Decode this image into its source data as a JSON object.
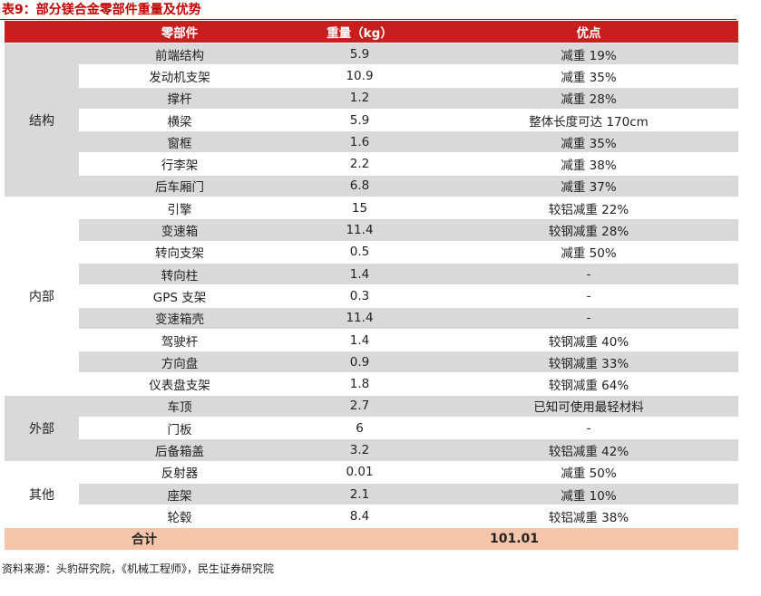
{
  "title": "表9：部分镁合金零部件重量及优势",
  "headers": {
    "group": "",
    "part": "零部件",
    "weight": "重量（kg）",
    "advantage": "优点"
  },
  "groups": [
    {
      "name": "结构",
      "rows": [
        {
          "part": "前端结构",
          "weight": "5.9",
          "advantage": "减重 19%"
        },
        {
          "part": "发动机支架",
          "weight": "10.9",
          "advantage": "减重 35%"
        },
        {
          "part": "撑杆",
          "weight": "1.2",
          "advantage": "减重 28%"
        },
        {
          "part": "横梁",
          "weight": "5.9",
          "advantage": "整体长度可达 170cm"
        },
        {
          "part": "窗框",
          "weight": "1.6",
          "advantage": "减重 35%"
        },
        {
          "part": "行李架",
          "weight": "2.2",
          "advantage": "减重 38%"
        },
        {
          "part": "后车厢门",
          "weight": "6.8",
          "advantage": "减重 37%"
        }
      ]
    },
    {
      "name": "内部",
      "rows": [
        {
          "part": "引擎",
          "weight": "15",
          "advantage": "较铝减重 22%"
        },
        {
          "part": "变速箱",
          "weight": "11.4",
          "advantage": "较钢减重 28%"
        },
        {
          "part": "转向支架",
          "weight": "0.5",
          "advantage": "减重 50%"
        },
        {
          "part": "转向柱",
          "weight": "1.4",
          "advantage": "-"
        },
        {
          "part": "GPS 支架",
          "weight": "0.3",
          "advantage": "-"
        },
        {
          "part": "变速箱壳",
          "weight": "11.4",
          "advantage": "-"
        },
        {
          "part": "驾驶杆",
          "weight": "1.4",
          "advantage": "较钢减重 40%"
        },
        {
          "part": "方向盘",
          "weight": "0.9",
          "advantage": "较钢减重 33%"
        },
        {
          "part": "仪表盘支架",
          "weight": "1.8",
          "advantage": "较钢减重 64%"
        }
      ]
    },
    {
      "name": "外部",
      "rows": [
        {
          "part": "车顶",
          "weight": "2.7",
          "advantage": "已知可使用最轻材料"
        },
        {
          "part": "门板",
          "weight": "6",
          "advantage": "-"
        },
        {
          "part": "后备箱盖",
          "weight": "3.2",
          "advantage": "较铝减重 42%"
        }
      ]
    },
    {
      "name": "其他",
      "rows": [
        {
          "part": "反射器",
          "weight": "0.01",
          "advantage": "减重 50%"
        },
        {
          "part": "座架",
          "weight": "2.1",
          "advantage": "减重 10%"
        },
        {
          "part": "轮毂",
          "weight": "8.4",
          "advantage": "较铝减重 38%"
        }
      ]
    }
  ],
  "total": {
    "label": "合计",
    "value": "101.01"
  },
  "source": "资料来源：头豹研究院，《机械工程师》，民生证券研究院"
}
